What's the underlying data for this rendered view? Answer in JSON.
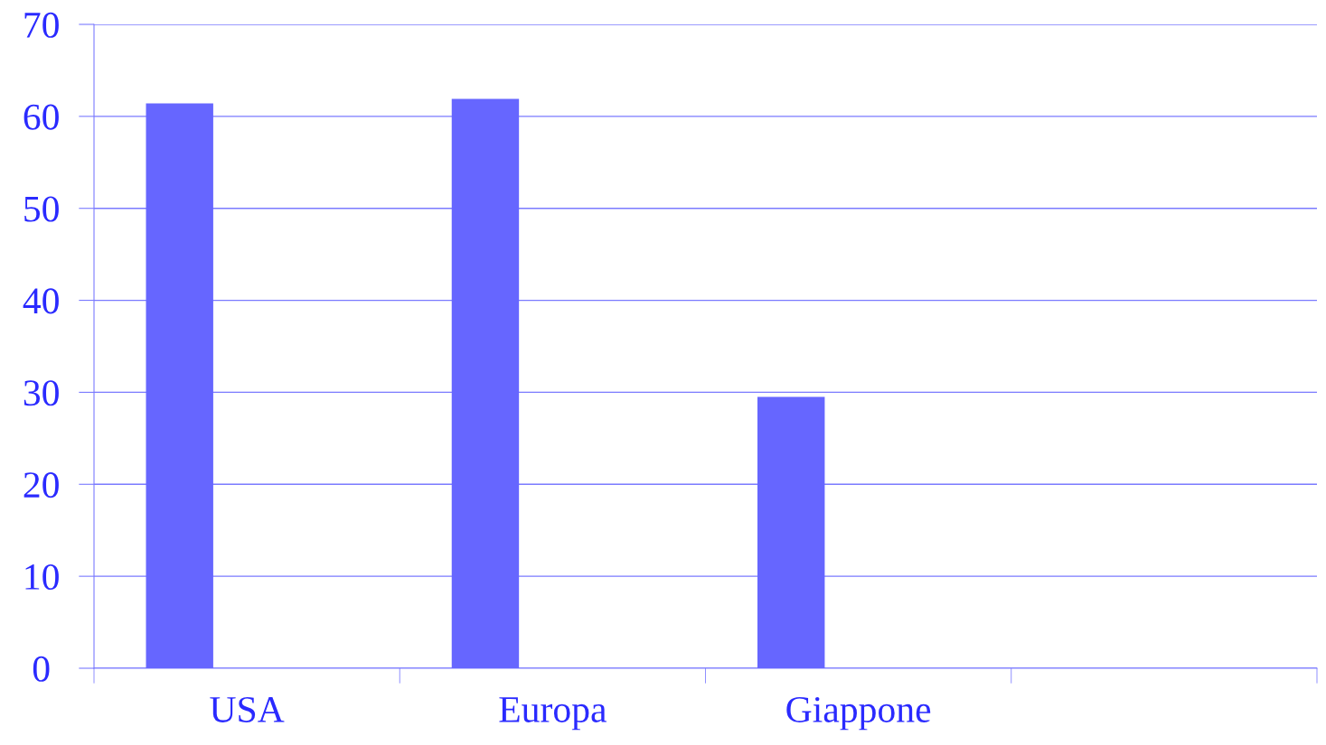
{
  "chart_data": {
    "type": "bar",
    "categories": [
      "USA",
      "Europa",
      "Giappone",
      null
    ],
    "values": [
      61.4,
      61.9,
      29.5,
      null
    ],
    "color": "#6666ff",
    "ylim": [
      0,
      70
    ],
    "yticks": [
      0,
      10,
      20,
      30,
      40,
      50,
      60,
      70
    ],
    "grid": "y"
  }
}
